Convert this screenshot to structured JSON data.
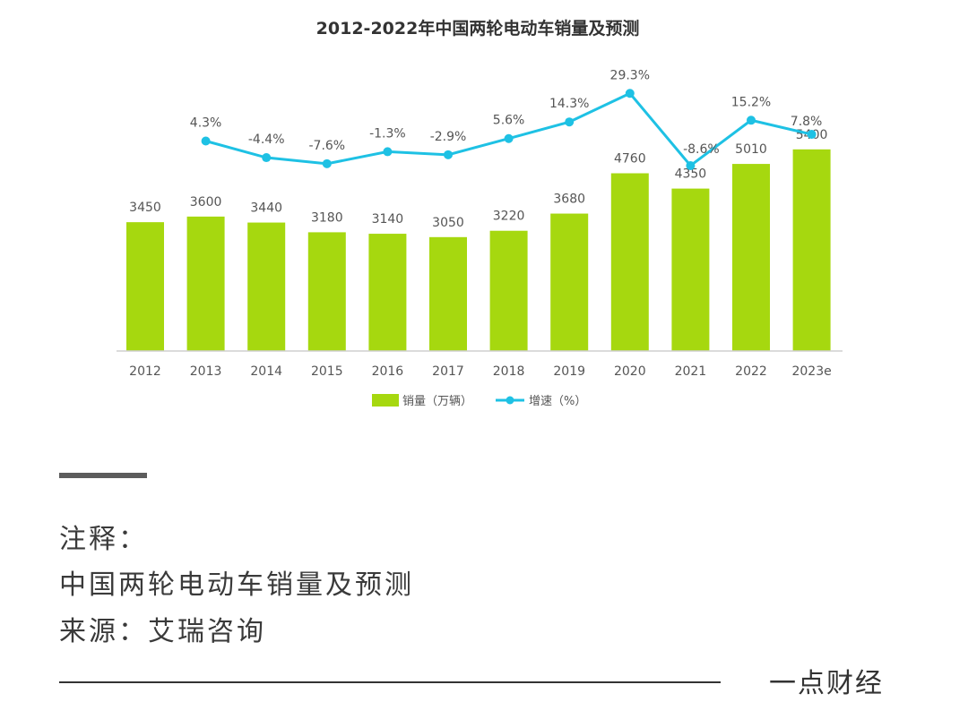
{
  "chart_data": {
    "type": "bar",
    "title": "2012-2022年中国两轮电动车销量及预测",
    "categories": [
      "2012",
      "2013",
      "2014",
      "2015",
      "2016",
      "2017",
      "2018",
      "2019",
      "2020",
      "2021",
      "2022",
      "2023e"
    ],
    "series": [
      {
        "name": "销量（万辆）",
        "type": "bar",
        "color": "#a6d80f",
        "values": [
          3450,
          3600,
          3440,
          3180,
          3140,
          3050,
          3220,
          3680,
          4760,
          4350,
          5010,
          5400
        ]
      },
      {
        "name": "增速（%）",
        "type": "line",
        "color": "#1ec1e4",
        "values": [
          null,
          4.3,
          -4.4,
          -7.6,
          -1.3,
          -2.9,
          5.6,
          14.3,
          29.3,
          -8.6,
          15.2,
          7.8
        ],
        "labels": [
          "",
          "4.3%",
          "-4.4%",
          "-7.6%",
          "-1.3%",
          "-2.9%",
          "5.6%",
          "14.3%",
          "29.3%",
          "-8.6%",
          "15.2%",
          "7.8%"
        ]
      }
    ],
    "legend": "bottom-center",
    "grid": false
  },
  "notes": {
    "heading": "注释：",
    "line1": "中国两轮电动车销量及预测",
    "source": "来源：艾瑞咨询"
  },
  "brand": "一点财经"
}
